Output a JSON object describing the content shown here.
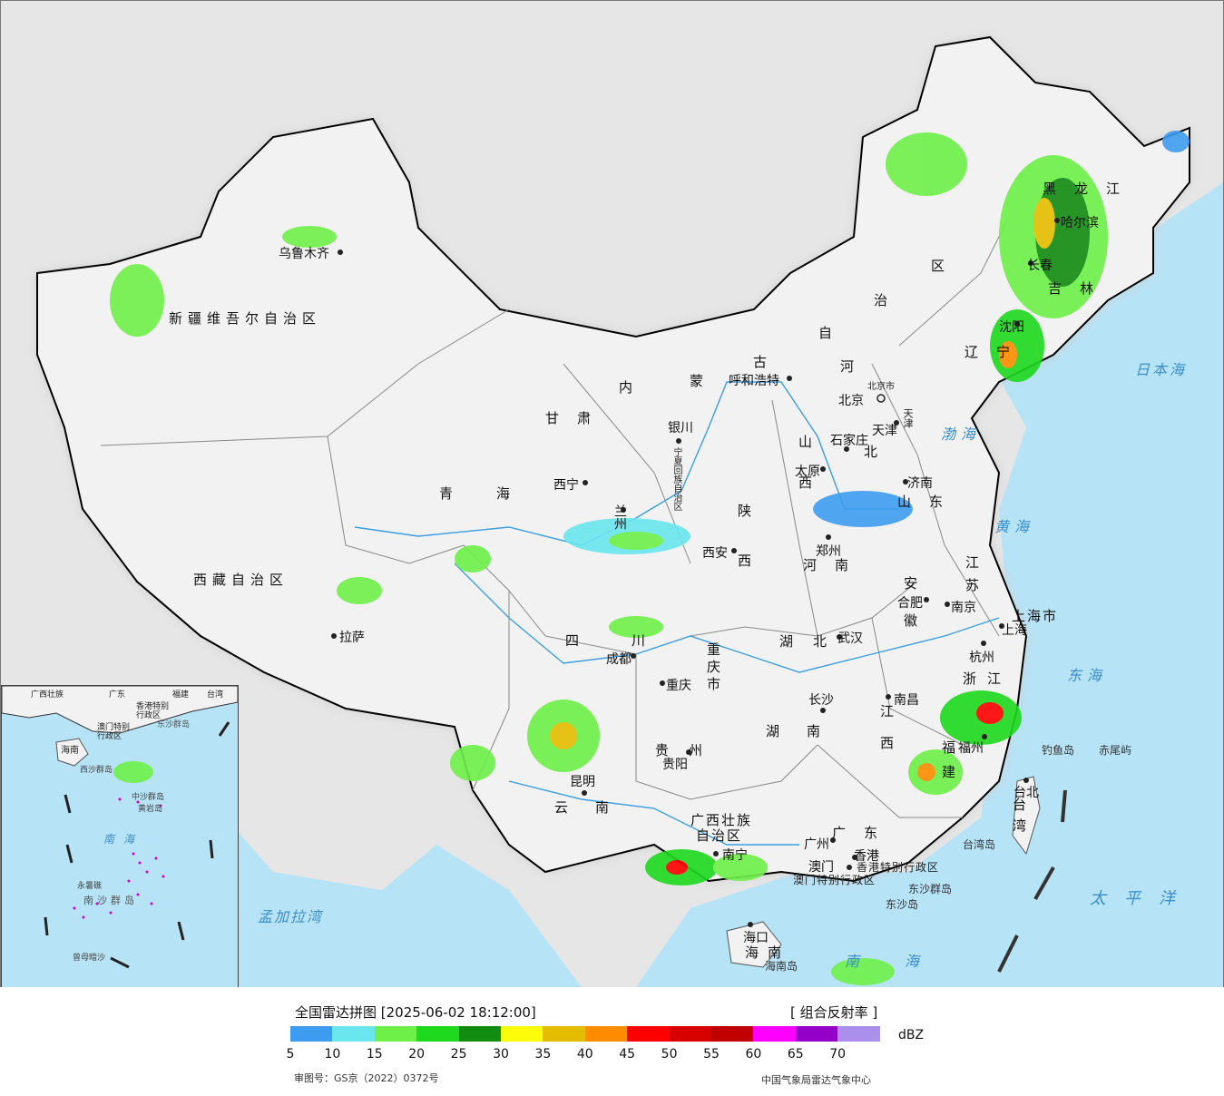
{
  "legend": {
    "title": "全国雷达拼图 [2025-06-02 18:12:00]",
    "product": "[ 组合反射率 ]",
    "unit": "dBZ",
    "colors": [
      "#3d9cf0",
      "#6ae6ee",
      "#6ef048",
      "#1ed91e",
      "#118c11",
      "#fdfd0a",
      "#e5bd00",
      "#ff8c00",
      "#ff0000",
      "#d90000",
      "#c10000",
      "#ff00ff",
      "#9400c8",
      "#ab8fed"
    ],
    "ticks": [
      "5",
      "10",
      "15",
      "20",
      "25",
      "30",
      "35",
      "40",
      "45",
      "50",
      "55",
      "60",
      "65",
      "70"
    ],
    "approval": "审图号：GS京（2022）0372号",
    "agency": "中国气象局雷达气象中心"
  },
  "provinces": {
    "xinjiang": "新疆维吾尔自治区",
    "xizang": "西藏自治区",
    "qinghai": "青海",
    "gansu": "甘肃",
    "neimenggu_1": "内",
    "neimenggu_2": "蒙",
    "neimenggu_3": "古",
    "neimenggu_4": "自",
    "neimenggu_5": "治",
    "neimenggu_6": "区",
    "heilongjiang": "黑龙江",
    "jilin": "吉林",
    "liaoning": "辽宁",
    "hebei_1": "河",
    "hebei_2": "北",
    "shanxi": "山西",
    "shaanxi": "陕西",
    "ningxia": "宁夏回族自治区",
    "shandong": "山东",
    "henan": "河南",
    "jiangsu": "江苏",
    "anhui": "安徽",
    "shanghai": "上海市",
    "zhejiang": "浙江",
    "hubei": "湖北",
    "sichuan": "四川",
    "chongqing": "重庆市",
    "hunan": "湖南",
    "jiangxi": "江西",
    "fujian": "福建",
    "guizhou": "贵州",
    "yunnan": "云南",
    "guangxi_1": "广西壮族",
    "guangxi_2": "自治区",
    "guangdong": "广东",
    "hainan": "海南",
    "taiwan": "台湾",
    "hongkong": "香港特别行政区",
    "macau": "澳门特别行政区",
    "tianjin": "天津"
  },
  "cities": {
    "urumqi": "乌鲁木齐",
    "lhasa": "拉萨",
    "xining": "西宁",
    "lanzhou": "兰州",
    "yinchuan": "银川",
    "hohhot": "呼和浩特",
    "beijing": "北京",
    "beijing_city": "北京市",
    "tianjin": "天津",
    "shijiazhuang": "石家庄",
    "taiyuan": "太原",
    "jinan": "济南",
    "zhengzhou": "郑州",
    "xian": "西安",
    "chengdu": "成都",
    "chongqing": "重庆",
    "wuhan": "武汉",
    "hefei": "合肥",
    "nanjing": "南京",
    "shanghai": "上海",
    "hangzhou": "杭州",
    "changsha": "长沙",
    "nanchang": "南昌",
    "fuzhou": "福州",
    "guiyang": "贵阳",
    "kunming": "昆明",
    "nanning": "南宁",
    "guangzhou": "广州",
    "hongkong": "香港",
    "macau": "澳门",
    "haikou": "海口",
    "taipei": "台北",
    "harbin": "哈尔滨",
    "changchun": "长春",
    "shenyang": "沈阳"
  },
  "seas": {
    "bohai": "渤海",
    "yellow_sea": "黄海",
    "east_china_sea": "东海",
    "south_china_sea": "南海",
    "pacific": "太平洋",
    "sea_of_japan": "日本海",
    "bay_of_bengal": "孟加拉湾"
  },
  "islands": {
    "diaoyu": "钓鱼岛",
    "chiwei": "赤尾屿",
    "taiwan_island": "台湾岛",
    "hainan_island": "海南岛",
    "dongsha_islands": "东沙群岛",
    "dongsha_island": "东沙岛"
  },
  "inset": {
    "south_sea": "南海",
    "nansha": "南沙群岛",
    "zengmu": "曾母暗沙",
    "yongshu": "永暑礁",
    "zhongsha": "中沙群岛",
    "huangyan": "黄岩岛",
    "xisha": "西沙群岛",
    "hainan": "海南",
    "guangxi": "广西壮族",
    "guangdong": "广东",
    "fujian": "福建",
    "taiwan": "台湾",
    "hk": "香港特别",
    "hk2": "行政区",
    "macau": "澳门特别",
    "macau2": "行政区",
    "dongsha": "东沙群岛"
  }
}
